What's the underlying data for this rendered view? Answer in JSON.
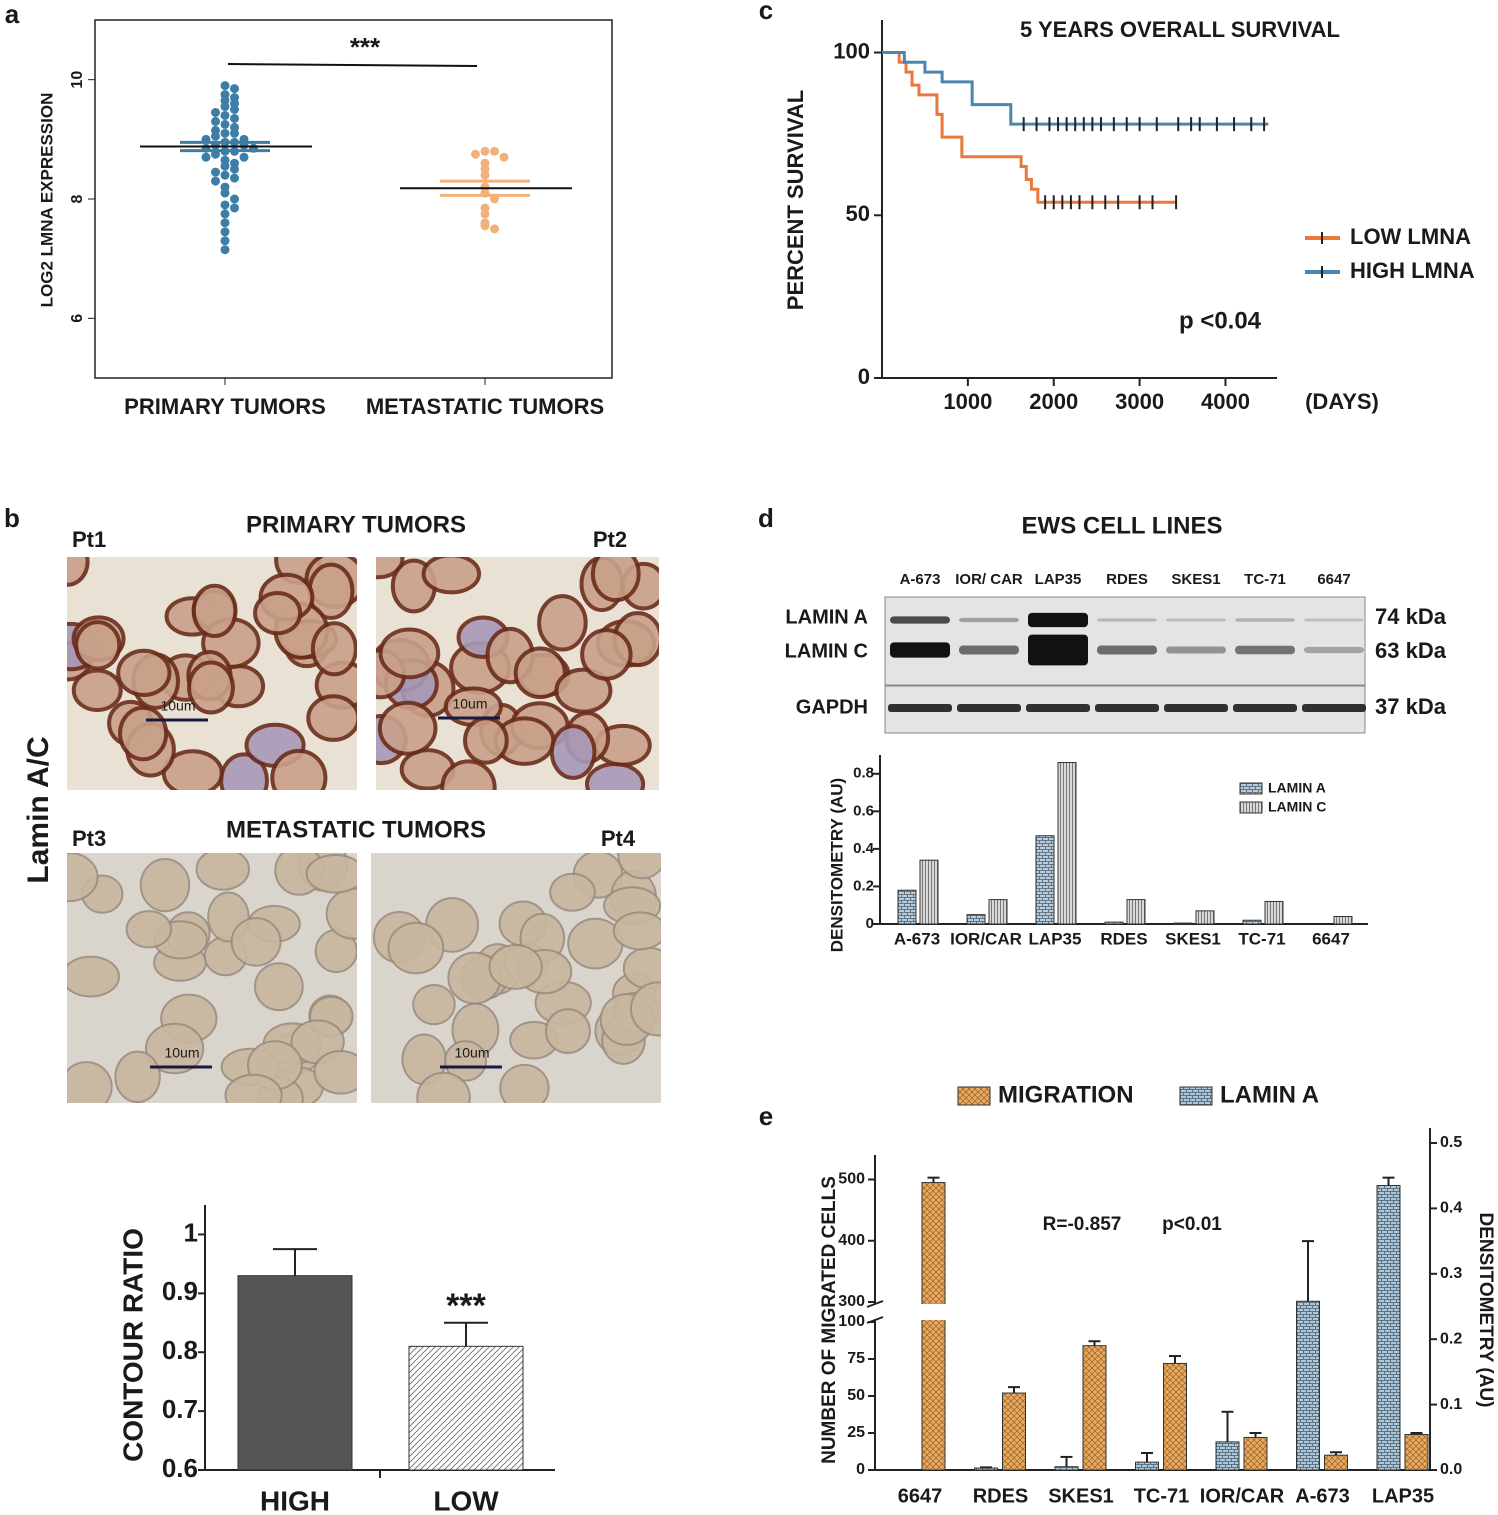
{
  "panel_labels": [
    "a",
    "b",
    "c",
    "d",
    "e"
  ],
  "micrographs": {
    "primary_title": "PRIMARY TUMORS",
    "metastatic_title": "METASTATIC TUMORS",
    "stain": "Lamin A/C",
    "images": [
      {
        "label": "Pt1",
        "scale": "10um"
      },
      {
        "label": "Pt2",
        "scale": "10um"
      },
      {
        "label": "Pt3",
        "scale": "10um"
      },
      {
        "label": "Pt4",
        "scale": "10um"
      }
    ]
  },
  "blot": {
    "title": "EWS CELL LINES",
    "lanes": [
      "A-673",
      "IOR/ CAR",
      "LAP35",
      "RDES",
      "SKES1",
      "TC-71",
      "6647"
    ],
    "rows": [
      {
        "label": "LAMIN A",
        "size": "74 kDa"
      },
      {
        "label": "LAMIN C",
        "size": "63 kDa"
      },
      {
        "label": "GAPDH",
        "size": "37 kDa"
      }
    ]
  },
  "chart_data": [
    {
      "type": "strip",
      "ylabel": "LOG2 LMNA EXPRESSION",
      "categories": [
        "PRIMARY TUMORS",
        "METASTATIC TUMORS"
      ],
      "values": [
        [
          9.9,
          9.85,
          9.75,
          9.7,
          9.65,
          9.6,
          9.55,
          9.5,
          9.45,
          9.4,
          9.35,
          9.3,
          9.25,
          9.2,
          9.15,
          9.1,
          9.1,
          9.05,
          9.0,
          9.0,
          8.95,
          8.95,
          8.9,
          8.9,
          8.85,
          8.85,
          8.8,
          8.8,
          8.75,
          8.7,
          8.7,
          8.65,
          8.6,
          8.55,
          8.5,
          8.45,
          8.4,
          8.35,
          8.3,
          8.2,
          8.1,
          8.0,
          7.9,
          7.85,
          7.75,
          7.6,
          7.45,
          7.3,
          7.15
        ],
        [
          8.8,
          8.8,
          8.75,
          8.7,
          8.6,
          8.5,
          8.4,
          8.2,
          8.1,
          8.0,
          7.85,
          7.75,
          7.6,
          7.55,
          7.5
        ]
      ],
      "colors": [
        "#3d7ea6",
        "#f0b27a"
      ],
      "means": [
        8.88,
        8.18
      ],
      "errors": [
        0.07,
        0.12
      ],
      "ylim": [
        5,
        11
      ],
      "yticks": [
        6,
        8,
        10
      ],
      "annotation": "***"
    },
    {
      "type": "survival",
      "title": "5 YEARS OVERALL SURVIVAL",
      "ylabel": "PERCENT SURVIVAL",
      "xlabel": "(DAYS)",
      "xlim": [
        0,
        4600
      ],
      "xticks": [
        1000,
        2000,
        3000,
        4000
      ],
      "ylim": [
        0,
        110
      ],
      "yticks": [
        0,
        50,
        100
      ],
      "annotation": "p <0.04",
      "legend": "right",
      "series": [
        {
          "name": "LOW LMNA",
          "color": "#e8793a",
          "x": [
            0,
            200,
            280,
            350,
            430,
            640,
            700,
            930,
            1620,
            1680,
            1740,
            1815,
            3425
          ],
          "values": [
            100,
            97,
            94,
            90,
            87,
            81,
            74,
            68,
            65,
            61,
            58,
            54,
            54
          ],
          "censored": {
            "x": [
              1900,
              2000,
              2100,
              2200,
              2300,
              2450,
              2600,
              2750,
              3000,
              3150,
              3425
            ],
            "values": [
              54,
              54,
              54,
              54,
              54,
              54,
              54,
              54,
              54,
              54,
              54
            ]
          }
        },
        {
          "name": "HIGH LMNA",
          "color": "#4a87b0",
          "x": [
            0,
            260,
            500,
            700,
            1050,
            1500,
            4500
          ],
          "values": [
            100,
            97,
            94,
            91,
            84,
            78,
            78
          ],
          "censored": {
            "x": [
              1650,
              1800,
              1950,
              2050,
              2150,
              2250,
              2350,
              2450,
              2550,
              2700,
              2850,
              3000,
              3200,
              3450,
              3600,
              3700,
              3900,
              4100,
              4300,
              4450
            ],
            "values": [
              78,
              78,
              78,
              78,
              78,
              78,
              78,
              78,
              78,
              78,
              78,
              78,
              78,
              78,
              78,
              78,
              78,
              78,
              78,
              78
            ]
          }
        }
      ]
    },
    {
      "type": "bar",
      "ylabel": "CONTOUR RATIO",
      "categories": [
        "HIGH",
        "LOW"
      ],
      "values": [
        0.93,
        0.81
      ],
      "errors": [
        0.045,
        0.04
      ],
      "colors": [
        "#555555",
        "#ffffff"
      ],
      "hatch": [
        false,
        true
      ],
      "ylim": [
        0.6,
        1.05
      ],
      "yticks": [
        0.6,
        0.7,
        0.8,
        0.9,
        1
      ],
      "annotation": "***"
    },
    {
      "type": "bar",
      "ylabel": "DENSITOMETRY (AU)",
      "categories": [
        "A-673",
        "IOR/CAR",
        "LAP35",
        "RDES",
        "SKES1",
        "TC-71",
        "6647"
      ],
      "series": [
        {
          "name": "LAMIN A",
          "color": "#b3cde3",
          "pattern": "brick",
          "values": [
            0.18,
            0.05,
            0.47,
            0.01,
            0.005,
            0.02,
            0
          ]
        },
        {
          "name": "LAMIN C",
          "color": "#d9d9d9",
          "pattern": "vertical",
          "values": [
            0.34,
            0.13,
            0.86,
            0.13,
            0.07,
            0.12,
            0.04
          ]
        }
      ],
      "ylim": [
        0,
        0.9
      ],
      "yticks": [
        0,
        0.2,
        0.4,
        0.6,
        0.8
      ],
      "legend": "upper right"
    },
    {
      "type": "bar",
      "ylabel": "NUMBER OF MIGRATED CELLS",
      "y2label": "DENSITOMETRY (AU)",
      "categories": [
        "6647",
        "RDES",
        "SKES1",
        "TC-71",
        "IOR/CAR",
        "A-673",
        "LAP35"
      ],
      "series": [
        {
          "name": "MIGRATION",
          "color": "#e8a860",
          "pattern": "weave",
          "values": [
            495,
            52,
            84,
            72,
            22,
            10,
            24
          ],
          "errors": [
            8,
            4,
            3,
            5,
            3,
            2,
            1
          ]
        },
        {
          "name": "LAMIN A",
          "color": "#a8c8e0",
          "pattern": "brick",
          "axis": "y2",
          "values": [
            0,
            0.003,
            0.005,
            0.012,
            0.043,
            0.258,
            0.435
          ],
          "errors": [
            0,
            0.001,
            0.015,
            0.014,
            0.046,
            0.092,
            0.012
          ]
        }
      ],
      "ylim": [
        0,
        540
      ],
      "ybreak": [
        100,
        300
      ],
      "yticks": [
        0,
        25,
        50,
        75,
        100,
        300,
        400,
        500
      ],
      "y2lim": [
        0,
        0.5
      ],
      "y2ticks": [
        {
          "value": 0,
          "label": "0.0"
        },
        0.1,
        0.2,
        0.3,
        0.4,
        0.5
      ],
      "annotations": [
        "R=-0.857",
        "p<0.01"
      ],
      "legend": "top"
    }
  ]
}
